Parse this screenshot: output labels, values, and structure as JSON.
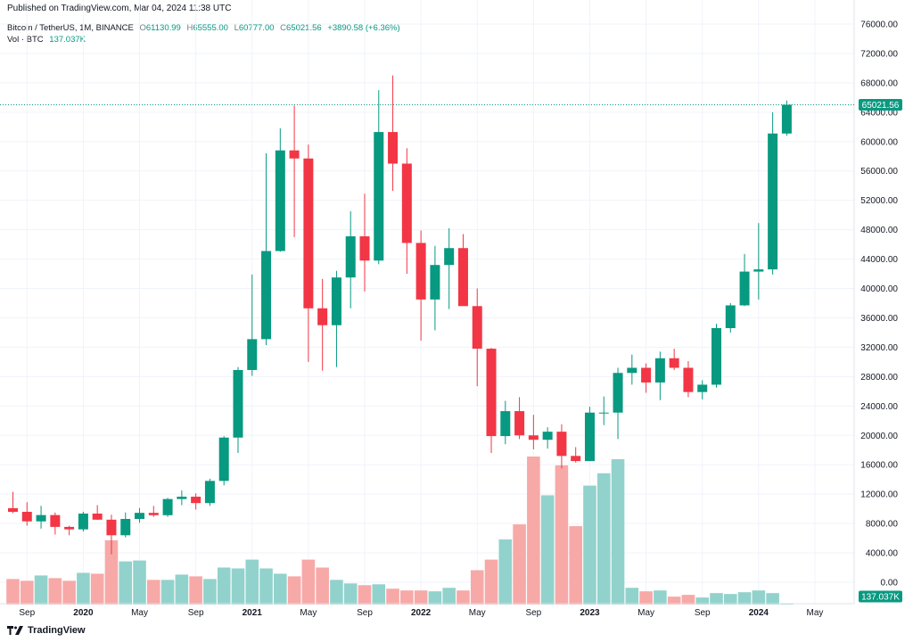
{
  "header": {
    "published": "Published on TradingView.com, Mar 04, 2024 11:38 UTC"
  },
  "legend": {
    "symbol": "Bitcoin / TetherUS, 1M, BINANCE",
    "o_label": "O",
    "o_value": "61130.99",
    "h_label": "H",
    "h_value": "65555.00",
    "l_label": "L",
    "l_value": "60777.00",
    "c_label": "C",
    "c_value": "65021.56",
    "change": "+3890.58 (+6.36%)",
    "vol_label": "Vol · BTC",
    "vol_value": "137.037K"
  },
  "footer": {
    "brand": "TradingView"
  },
  "colors": {
    "up": "#089981",
    "down": "#f23645",
    "vol_up": "#92d2cc",
    "vol_down": "#f7a9a7",
    "grid": "#f0f3fa",
    "axis_text": "#131722"
  },
  "chart_data": {
    "type": "candlestick",
    "y_ticks": [
      "76000.00",
      "72000.00",
      "68000.00",
      "64000.00",
      "60000.00",
      "56000.00",
      "52000.00",
      "48000.00",
      "44000.00",
      "40000.00",
      "36000.00",
      "32000.00",
      "28000.00",
      "24000.00",
      "20000.00",
      "16000.00",
      "12000.00",
      "8000.00",
      "4000.00",
      "0.00"
    ],
    "y_range": [
      -2000,
      78000
    ],
    "x_ticks": [
      "Sep",
      "2020",
      "May",
      "Sep",
      "2021",
      "May",
      "Sep",
      "2022",
      "May",
      "Sep",
      "2023",
      "May",
      "Sep",
      "2024",
      "May"
    ],
    "x_tick_months": [
      "2019-09",
      "2020-01",
      "2020-05",
      "2020-09",
      "2021-01",
      "2021-05",
      "2021-09",
      "2022-01",
      "2022-05",
      "2022-09",
      "2023-01",
      "2023-05",
      "2023-09",
      "2024-01",
      "2024-05"
    ],
    "last_price_label": "65021.56",
    "last_volume_label": "137.037K",
    "candles": [
      {
        "t": "2019-08",
        "o": 10090,
        "h": 12300,
        "l": 9400,
        "c": 9590,
        "v": 2900
      },
      {
        "t": "2019-09",
        "o": 9590,
        "h": 10900,
        "l": 7700,
        "c": 8290,
        "v": 2700
      },
      {
        "t": "2019-10",
        "o": 8290,
        "h": 10400,
        "l": 7300,
        "c": 9150,
        "v": 3300
      },
      {
        "t": "2019-11",
        "o": 9150,
        "h": 9500,
        "l": 6500,
        "c": 7540,
        "v": 3000
      },
      {
        "t": "2019-12",
        "o": 7540,
        "h": 7700,
        "l": 6400,
        "c": 7200,
        "v": 2700
      },
      {
        "t": "2020-01",
        "o": 7200,
        "h": 9600,
        "l": 6900,
        "c": 9350,
        "v": 3600
      },
      {
        "t": "2020-02",
        "o": 9350,
        "h": 10500,
        "l": 8500,
        "c": 8520,
        "v": 3500
      },
      {
        "t": "2020-03",
        "o": 8520,
        "h": 9200,
        "l": 3800,
        "c": 6400,
        "v": 7300
      },
      {
        "t": "2020-04",
        "o": 6400,
        "h": 9500,
        "l": 6100,
        "c": 8620,
        "v": 4900
      },
      {
        "t": "2020-05",
        "o": 8620,
        "h": 10100,
        "l": 8100,
        "c": 9450,
        "v": 5000
      },
      {
        "t": "2020-06",
        "o": 9450,
        "h": 10400,
        "l": 8900,
        "c": 9130,
        "v": 2800
      },
      {
        "t": "2020-07",
        "o": 9130,
        "h": 11500,
        "l": 8900,
        "c": 11330,
        "v": 2800
      },
      {
        "t": "2020-08",
        "o": 11330,
        "h": 12500,
        "l": 10500,
        "c": 11650,
        "v": 3400
      },
      {
        "t": "2020-09",
        "o": 11650,
        "h": 12100,
        "l": 9900,
        "c": 10780,
        "v": 3200
      },
      {
        "t": "2020-10",
        "o": 10780,
        "h": 14100,
        "l": 10400,
        "c": 13800,
        "v": 2900
      },
      {
        "t": "2020-11",
        "o": 13800,
        "h": 19900,
        "l": 13200,
        "c": 19700,
        "v": 4200
      },
      {
        "t": "2020-12",
        "o": 19700,
        "h": 29300,
        "l": 17600,
        "c": 28900,
        "v": 4100
      },
      {
        "t": "2021-01",
        "o": 28900,
        "h": 41900,
        "l": 28100,
        "c": 33100,
        "v": 5100
      },
      {
        "t": "2021-02",
        "o": 33100,
        "h": 58400,
        "l": 32300,
        "c": 45100,
        "v": 4100
      },
      {
        "t": "2021-03",
        "o": 45100,
        "h": 61800,
        "l": 45000,
        "c": 58800,
        "v": 3500
      },
      {
        "t": "2021-04",
        "o": 58800,
        "h": 64900,
        "l": 47000,
        "c": 57700,
        "v": 3200
      },
      {
        "t": "2021-05",
        "o": 57700,
        "h": 59600,
        "l": 30000,
        "c": 37300,
        "v": 5100
      },
      {
        "t": "2021-06",
        "o": 37300,
        "h": 41300,
        "l": 28800,
        "c": 35000,
        "v": 4200
      },
      {
        "t": "2021-07",
        "o": 35000,
        "h": 42400,
        "l": 29300,
        "c": 41500,
        "v": 2800
      },
      {
        "t": "2021-08",
        "o": 41500,
        "h": 50500,
        "l": 37300,
        "c": 47100,
        "v": 2400
      },
      {
        "t": "2021-09",
        "o": 47100,
        "h": 52900,
        "l": 39600,
        "c": 43800,
        "v": 2200
      },
      {
        "t": "2021-10",
        "o": 43800,
        "h": 67000,
        "l": 43300,
        "c": 61300,
        "v": 2300
      },
      {
        "t": "2021-11",
        "o": 61300,
        "h": 69000,
        "l": 53300,
        "c": 57000,
        "v": 1800
      },
      {
        "t": "2021-12",
        "o": 57000,
        "h": 59100,
        "l": 42000,
        "c": 46200,
        "v": 1600
      },
      {
        "t": "2022-01",
        "o": 46200,
        "h": 47900,
        "l": 32900,
        "c": 38500,
        "v": 1600
      },
      {
        "t": "2022-02",
        "o": 38500,
        "h": 45800,
        "l": 34300,
        "c": 43200,
        "v": 1500
      },
      {
        "t": "2022-03",
        "o": 43200,
        "h": 48200,
        "l": 37200,
        "c": 45500,
        "v": 1900
      },
      {
        "t": "2022-04",
        "o": 45500,
        "h": 47400,
        "l": 37700,
        "c": 37600,
        "v": 1600
      },
      {
        "t": "2022-05",
        "o": 37600,
        "h": 40000,
        "l": 26700,
        "c": 31800,
        "v": 3900
      },
      {
        "t": "2022-06",
        "o": 31800,
        "h": 31900,
        "l": 17600,
        "c": 19900,
        "v": 5100
      },
      {
        "t": "2022-07",
        "o": 19900,
        "h": 24700,
        "l": 18800,
        "c": 23300,
        "v": 7400
      },
      {
        "t": "2022-08",
        "o": 23300,
        "h": 25200,
        "l": 19500,
        "c": 20000,
        "v": 9100
      },
      {
        "t": "2022-09",
        "o": 20000,
        "h": 22800,
        "l": 18100,
        "c": 19400,
        "v": 16800
      },
      {
        "t": "2022-10",
        "o": 19400,
        "h": 21100,
        "l": 18200,
        "c": 20500,
        "v": 12400
      },
      {
        "t": "2022-11",
        "o": 20500,
        "h": 21500,
        "l": 15500,
        "c": 17200,
        "v": 15800
      },
      {
        "t": "2022-12",
        "o": 17200,
        "h": 18400,
        "l": 16300,
        "c": 16500,
        "v": 8900
      },
      {
        "t": "2023-01",
        "o": 16500,
        "h": 23900,
        "l": 16500,
        "c": 23100,
        "v": 13500
      },
      {
        "t": "2023-02",
        "o": 23100,
        "h": 25300,
        "l": 21400,
        "c": 23100,
        "v": 14900
      },
      {
        "t": "2023-03",
        "o": 23100,
        "h": 29200,
        "l": 19500,
        "c": 28500,
        "v": 16500
      },
      {
        "t": "2023-04",
        "o": 28500,
        "h": 31000,
        "l": 26900,
        "c": 29200,
        "v": 1900
      },
      {
        "t": "2023-05",
        "o": 29200,
        "h": 29800,
        "l": 25800,
        "c": 27200,
        "v": 1500
      },
      {
        "t": "2023-06",
        "o": 27200,
        "h": 31400,
        "l": 24800,
        "c": 30500,
        "v": 1600
      },
      {
        "t": "2023-07",
        "o": 30500,
        "h": 31800,
        "l": 28900,
        "c": 29200,
        "v": 900
      },
      {
        "t": "2023-08",
        "o": 29200,
        "h": 30100,
        "l": 25200,
        "c": 25900,
        "v": 1100
      },
      {
        "t": "2023-09",
        "o": 25900,
        "h": 27500,
        "l": 24900,
        "c": 26900,
        "v": 800
      },
      {
        "t": "2023-10",
        "o": 26900,
        "h": 35200,
        "l": 26500,
        "c": 34600,
        "v": 1300
      },
      {
        "t": "2023-11",
        "o": 34600,
        "h": 38000,
        "l": 34000,
        "c": 37700,
        "v": 1200
      },
      {
        "t": "2023-12",
        "o": 37700,
        "h": 44700,
        "l": 37600,
        "c": 42300,
        "v": 1400
      },
      {
        "t": "2024-01",
        "o": 42300,
        "h": 48900,
        "l": 38500,
        "c": 42600,
        "v": 1600
      },
      {
        "t": "2024-02",
        "o": 42600,
        "h": 64000,
        "l": 41900,
        "c": 61100,
        "v": 1300
      },
      {
        "t": "2024-03",
        "o": 61100,
        "h": 65600,
        "l": 60800,
        "c": 65020,
        "v": 137
      }
    ]
  }
}
